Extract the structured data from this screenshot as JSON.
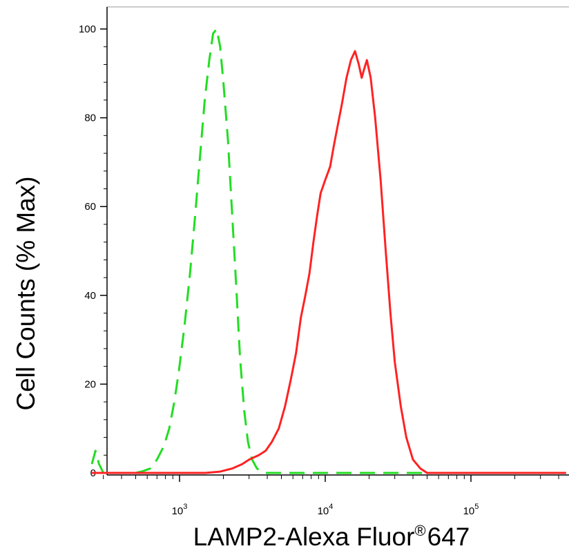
{
  "chart_data": {
    "type": "line",
    "xlabel": "LAMP2-Alexa Fluor",
    "xlabel_superscript": "®",
    "xlabel_suffix": "647",
    "ylabel": "Cell Counts (% Max)",
    "x_scale": "log",
    "xlim": [
      250,
      450000
    ],
    "ylim": [
      0,
      100
    ],
    "y_ticks": [
      {
        "value": 0,
        "label": "0"
      },
      {
        "value": 20,
        "label": "20"
      },
      {
        "value": 40,
        "label": "40"
      },
      {
        "value": 60,
        "label": "60"
      },
      {
        "value": 80,
        "label": "80"
      },
      {
        "value": 100,
        "label": "100"
      }
    ],
    "x_ticks": [
      {
        "value": 1000,
        "base": "10",
        "exponent": "3"
      },
      {
        "value": 10000,
        "base": "10",
        "exponent": "4"
      },
      {
        "value": 100000,
        "base": "10",
        "exponent": "5"
      }
    ],
    "grid": false,
    "legend": "none",
    "series": [
      {
        "style": "dashed",
        "color": "#22dd22",
        "points": [
          [
            250,
            2
          ],
          [
            265,
            5
          ],
          [
            280,
            2
          ],
          [
            300,
            0
          ],
          [
            400,
            0
          ],
          [
            500,
            0
          ],
          [
            560,
            0.4
          ],
          [
            630,
            1
          ],
          [
            700,
            3
          ],
          [
            780,
            6
          ],
          [
            850,
            10
          ],
          [
            920,
            16
          ],
          [
            990,
            23
          ],
          [
            1080,
            33
          ],
          [
            1180,
            45
          ],
          [
            1280,
            58
          ],
          [
            1380,
            71
          ],
          [
            1490,
            84
          ],
          [
            1600,
            93
          ],
          [
            1700,
            99
          ],
          [
            1800,
            100
          ],
          [
            1900,
            96
          ],
          [
            2000,
            88
          ],
          [
            2150,
            75
          ],
          [
            2300,
            58
          ],
          [
            2450,
            42
          ],
          [
            2600,
            26
          ],
          [
            2780,
            14
          ],
          [
            2950,
            7
          ],
          [
            3150,
            3
          ],
          [
            3400,
            1
          ],
          [
            3800,
            0
          ],
          [
            5000,
            0
          ],
          [
            20000,
            0
          ],
          [
            100000,
            0
          ],
          [
            450000,
            0
          ]
        ]
      },
      {
        "style": "solid",
        "color": "#ff2222",
        "points": [
          [
            250,
            0
          ],
          [
            1000,
            0
          ],
          [
            1500,
            0
          ],
          [
            1900,
            0.3
          ],
          [
            2300,
            1
          ],
          [
            2700,
            2
          ],
          [
            3000,
            3
          ],
          [
            3500,
            4
          ],
          [
            3900,
            5
          ],
          [
            4300,
            7
          ],
          [
            4800,
            10
          ],
          [
            5300,
            15
          ],
          [
            5800,
            21
          ],
          [
            6300,
            27
          ],
          [
            6800,
            35
          ],
          [
            7300,
            40
          ],
          [
            7800,
            45
          ],
          [
            8300,
            52
          ],
          [
            8800,
            58
          ],
          [
            9300,
            63
          ],
          [
            10000,
            66
          ],
          [
            10800,
            69
          ],
          [
            11500,
            74
          ],
          [
            12300,
            79
          ],
          [
            13000,
            83
          ],
          [
            14000,
            89
          ],
          [
            15000,
            93
          ],
          [
            16000,
            95
          ],
          [
            17000,
            92
          ],
          [
            17800,
            89
          ],
          [
            18500,
            91
          ],
          [
            19300,
            93
          ],
          [
            20500,
            89
          ],
          [
            22000,
            80
          ],
          [
            24000,
            66
          ],
          [
            26000,
            50
          ],
          [
            28000,
            36
          ],
          [
            30000,
            25
          ],
          [
            33000,
            15
          ],
          [
            36000,
            8
          ],
          [
            40000,
            3
          ],
          [
            45000,
            1
          ],
          [
            50000,
            0
          ],
          [
            100000,
            0
          ],
          [
            450000,
            0
          ]
        ]
      }
    ]
  }
}
